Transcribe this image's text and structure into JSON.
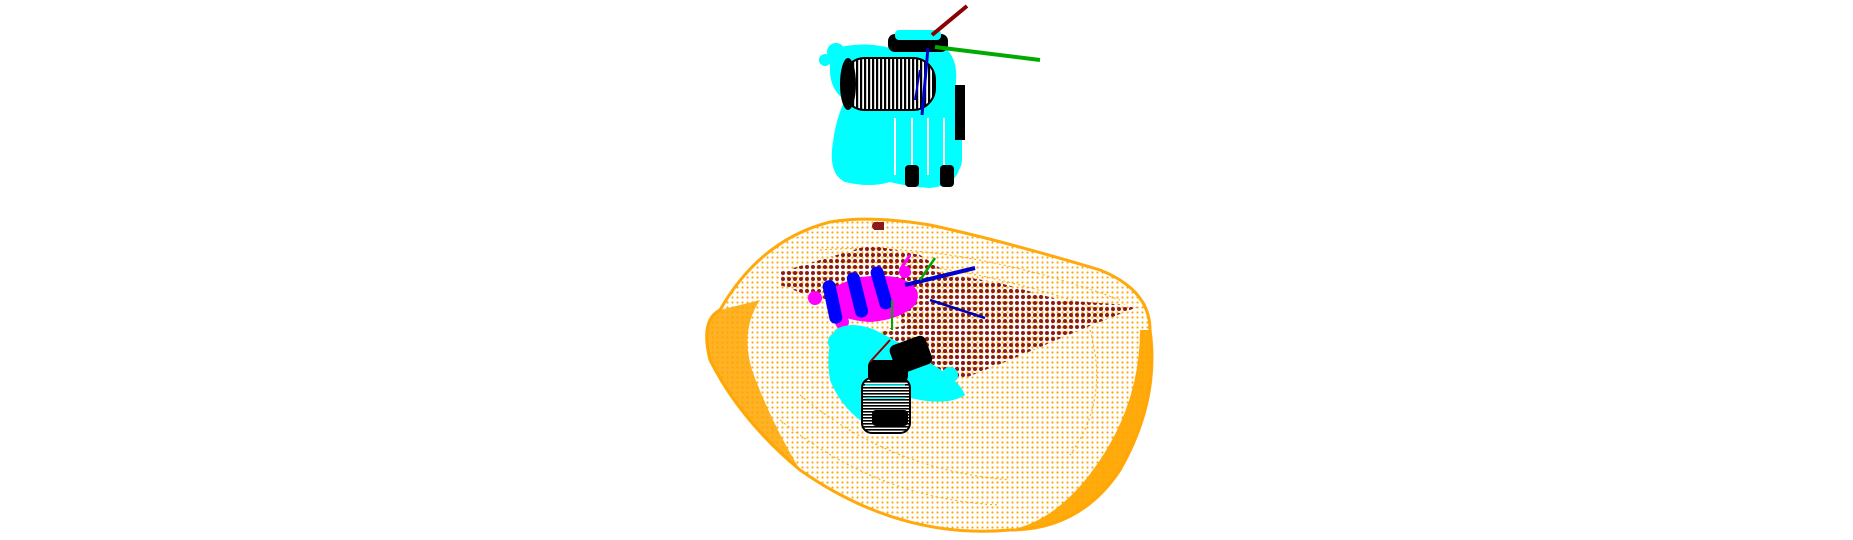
{
  "viewer": {
    "background_color": "#ffffff"
  },
  "colors": {
    "bin_points": "#ffa500",
    "plane_points": "#8b1a1a",
    "gripper_points": "#00ffff",
    "object_points": "#ff00ff",
    "gripper_mesh": "#000000",
    "grasp_candidates": "#0000ff",
    "axis_x": "#8b0000",
    "axis_y": "#00aa00",
    "axis_z": "#0000cc"
  },
  "scene": {
    "objects": [
      {
        "name": "bin-point-cloud",
        "color_key": "bin_points"
      },
      {
        "name": "plane-segment-point-cloud",
        "color_key": "plane_points"
      },
      {
        "name": "target-object-point-cloud",
        "color_key": "object_points"
      },
      {
        "name": "top-gripper-model",
        "color_key": "gripper_points"
      },
      {
        "name": "bottom-gripper-model",
        "color_key": "gripper_points"
      },
      {
        "name": "grasp-candidates",
        "color_key": "grasp_candidates"
      }
    ]
  }
}
